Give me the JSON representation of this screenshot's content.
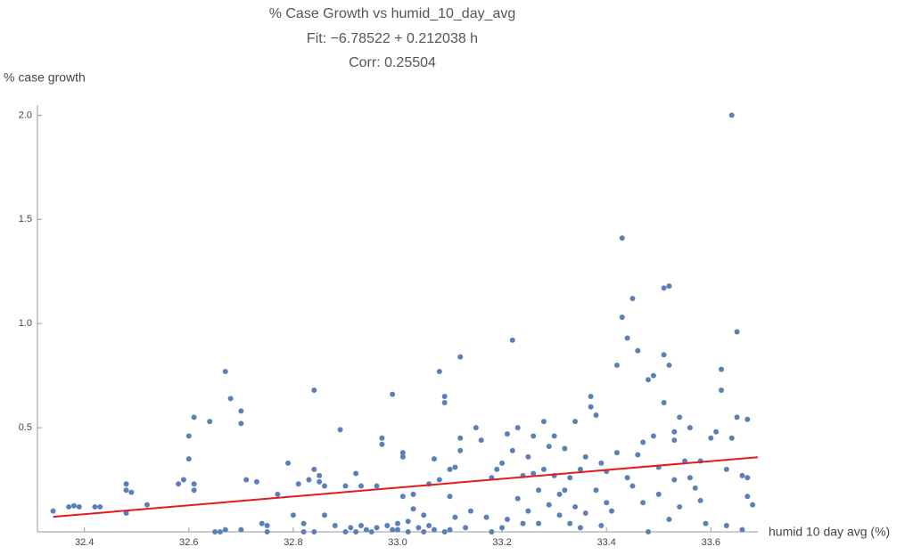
{
  "chart_data": {
    "type": "scatter",
    "title": "% Case Growth vs humid_10_day_avg",
    "subtitle": "Fit: −6.78522 + 0.212038 h",
    "annotation": "Corr: 0.25504",
    "y_label": "% case growth",
    "x_label": "humid 10 day avg (%)",
    "color": "#5b7fb8",
    "xlim": [
      32.31,
      33.69
    ],
    "ylim": [
      0,
      2.04
    ],
    "xticks": [
      32.4,
      32.6,
      32.8,
      {
        "value": 33.0,
        "label": "33.0"
      },
      33.2,
      33.4,
      33.6
    ],
    "yticks": [
      0.5,
      {
        "value": 1.0,
        "label": "1.0"
      },
      1.5,
      {
        "value": 2.0,
        "label": "2.0"
      }
    ],
    "x": [
      32.34,
      32.37,
      32.38,
      32.39,
      32.42,
      32.43,
      32.48,
      32.48,
      32.48,
      32.49,
      32.52,
      32.58,
      32.59,
      32.6,
      32.6,
      32.61,
      32.61,
      32.61,
      32.64,
      32.65,
      32.66,
      32.67,
      32.67,
      32.68,
      32.7,
      32.7,
      32.7,
      32.71,
      32.73,
      32.74,
      32.75,
      32.75,
      32.77,
      32.79,
      32.8,
      32.81,
      32.82,
      32.82,
      32.83,
      32.84,
      32.84,
      32.84,
      32.85,
      32.85,
      32.86,
      32.86,
      32.88,
      32.89,
      32.9,
      32.9,
      32.91,
      32.92,
      32.92,
      32.93,
      32.93,
      32.94,
      32.95,
      32.96,
      32.96,
      32.97,
      32.97,
      32.98,
      32.99,
      32.99,
      33.0,
      33.0,
      33.01,
      33.01,
      33.01,
      33.02,
      33.02,
      33.03,
      33.03,
      33.04,
      33.05,
      33.05,
      33.06,
      33.06,
      33.07,
      33.07,
      33.08,
      33.08,
      33.09,
      33.09,
      33.09,
      33.1,
      33.1,
      33.1,
      33.11,
      33.11,
      33.12,
      33.12,
      33.12,
      33.13,
      33.14,
      33.15,
      33.16,
      33.17,
      33.18,
      33.18,
      33.19,
      33.2,
      33.2,
      33.21,
      33.21,
      33.22,
      33.22,
      33.23,
      33.23,
      33.24,
      33.24,
      33.25,
      33.25,
      33.26,
      33.26,
      33.27,
      33.27,
      33.28,
      33.28,
      33.29,
      33.29,
      33.3,
      33.3,
      33.31,
      33.31,
      33.32,
      33.32,
      33.33,
      33.33,
      33.34,
      33.34,
      33.35,
      33.35,
      33.36,
      33.36,
      33.37,
      33.37,
      33.38,
      33.38,
      33.39,
      33.39,
      33.4,
      33.4,
      33.41,
      33.42,
      33.42,
      33.43,
      33.43,
      33.44,
      33.44,
      33.45,
      33.45,
      33.46,
      33.46,
      33.47,
      33.47,
      33.48,
      33.48,
      33.49,
      33.49,
      33.5,
      33.5,
      33.51,
      33.51,
      33.51,
      33.52,
      33.52,
      33.52,
      33.53,
      33.53,
      33.53,
      33.54,
      33.54,
      33.55,
      33.56,
      33.56,
      33.57,
      33.58,
      33.58,
      33.59,
      33.6,
      33.61,
      33.62,
      33.62,
      33.63,
      33.63,
      33.64,
      33.64,
      33.65,
      33.65,
      33.66,
      33.66,
      33.67,
      33.67,
      33.68,
      33.67
    ],
    "values": [
      0.1,
      0.12,
      0.125,
      0.12,
      0.12,
      0.12,
      0.09,
      0.2,
      0.23,
      0.19,
      0.13,
      0.23,
      0.25,
      0.35,
      0.46,
      0.55,
      0.23,
      0.2,
      0.53,
      0.0,
      0.0,
      0.01,
      0.77,
      0.64,
      0.58,
      0.52,
      0.01,
      0.25,
      0.24,
      0.04,
      0.03,
      0.0,
      0.18,
      0.33,
      0.08,
      0.23,
      0.0,
      0.04,
      0.25,
      0.0,
      0.3,
      0.68,
      0.27,
      0.24,
      0.22,
      0.08,
      0.03,
      0.49,
      0.22,
      0.0,
      0.02,
      0.28,
      0.0,
      0.22,
      0.03,
      0.01,
      0.0,
      0.22,
      0.02,
      0.42,
      0.45,
      0.03,
      0.01,
      0.66,
      0.01,
      0.04,
      0.36,
      0.38,
      0.17,
      0.0,
      0.05,
      0.18,
      0.11,
      0.02,
      0.0,
      0.08,
      0.03,
      0.23,
      0.35,
      0.01,
      0.77,
      0.25,
      0.62,
      0.65,
      0.0,
      0.3,
      0.17,
      0.01,
      0.31,
      0.07,
      0.39,
      0.84,
      0.45,
      0.02,
      0.1,
      0.5,
      0.44,
      0.07,
      0.0,
      0.26,
      0.3,
      0.33,
      0.02,
      0.06,
      0.47,
      0.92,
      0.39,
      0.16,
      0.5,
      0.27,
      0.04,
      0.36,
      0.1,
      0.28,
      0.46,
      0.04,
      0.2,
      0.53,
      0.3,
      0.13,
      0.41,
      0.46,
      0.27,
      0.18,
      0.08,
      0.4,
      0.2,
      0.04,
      0.26,
      0.53,
      0.12,
      0.02,
      0.3,
      0.09,
      0.36,
      0.65,
      0.6,
      0.56,
      0.2,
      0.03,
      0.33,
      0.14,
      0.29,
      0.1,
      0.38,
      0.8,
      1.41,
      1.03,
      0.93,
      0.26,
      0.22,
      1.12,
      0.87,
      0.37,
      0.43,
      0.14,
      0.73,
      0.0,
      0.75,
      0.46,
      0.31,
      0.18,
      0.85,
      1.17,
      0.62,
      0.06,
      1.18,
      0.8,
      0.44,
      0.25,
      0.48,
      0.55,
      0.12,
      0.34,
      0.5,
      0.26,
      0.21,
      0.34,
      0.15,
      0.04,
      0.45,
      0.48,
      0.78,
      0.68,
      0.3,
      0.03,
      2.0,
      0.45,
      0.96,
      0.55,
      0.27,
      0.01,
      0.54,
      0.26,
      0.13,
      0.17
    ],
    "fit": {
      "type": "line",
      "color": "#e8191b",
      "x": [
        32.34,
        33.69
      ],
      "values": [
        0.0721,
        0.3584
      ]
    }
  }
}
